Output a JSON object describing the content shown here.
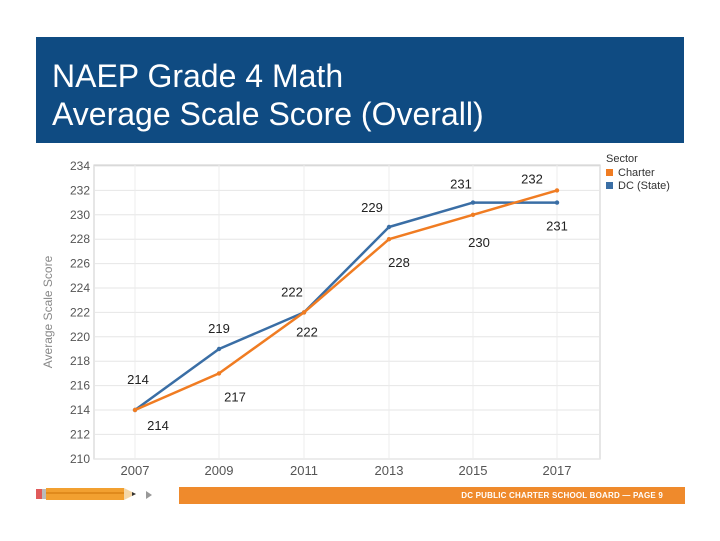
{
  "title": {
    "line1": "NAEP Grade 4 Math",
    "line2": "Average Scale Score (Overall)"
  },
  "footer": {
    "text": "DC PUBLIC CHARTER SCHOOL BOARD — PAGE 9"
  },
  "colors": {
    "title_bg": "#0f4b82",
    "charter": "#f07c22",
    "dc": "#3a6ea5",
    "footer": "#ef8a2c"
  },
  "legend": {
    "title": "Sector",
    "items": [
      "Charter",
      "DC (State)"
    ]
  },
  "chart_data": {
    "type": "line",
    "title": "NAEP Grade 4 Math Average Scale Score (Overall)",
    "xlabel": "",
    "ylabel": "Average Scale Score",
    "x": [
      "2007",
      "2009",
      "2011",
      "2013",
      "2015",
      "2017"
    ],
    "ylim": [
      210,
      234
    ],
    "yticks": [
      210,
      212,
      214,
      216,
      218,
      220,
      222,
      224,
      226,
      228,
      230,
      232,
      234
    ],
    "grid": true,
    "legend_position": "top-right",
    "series": [
      {
        "name": "Charter",
        "values": [
          214,
          217,
          222,
          228,
          230,
          232
        ]
      },
      {
        "name": "DC (State)",
        "values": [
          214,
          219,
          222,
          229,
          231,
          231
        ]
      }
    ]
  }
}
